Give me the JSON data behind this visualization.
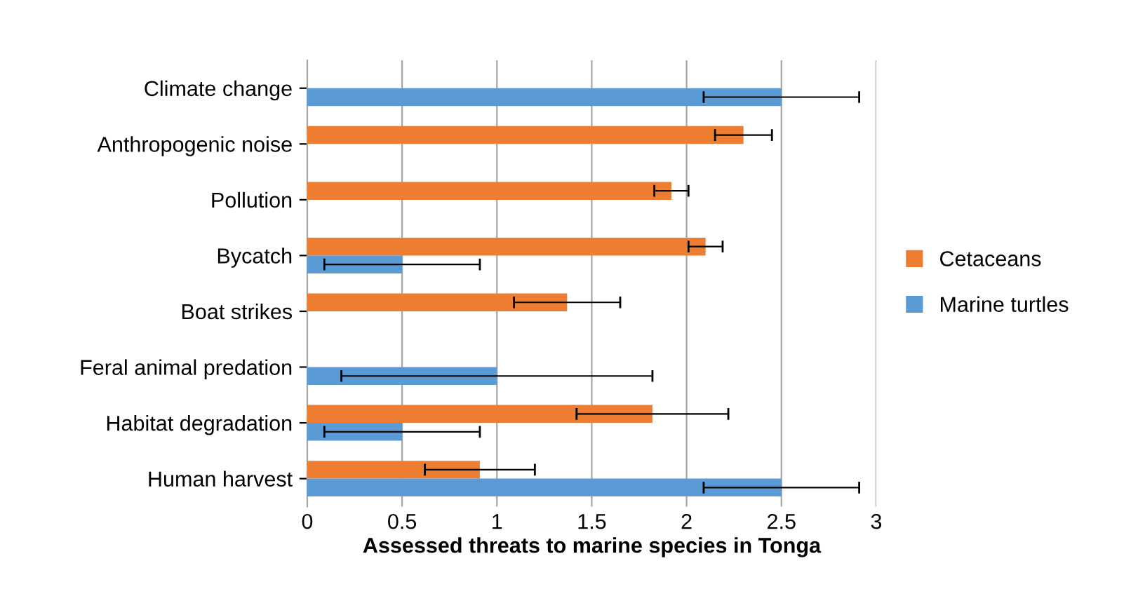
{
  "chart_data": {
    "type": "bar",
    "orientation": "horizontal",
    "xlabel": "Assessed threats to marine species in Tonga",
    "categories": [
      "Climate change",
      "Anthropogenic noise",
      "Pollution",
      "Bycatch",
      "Boat strikes",
      "Feral animal predation",
      "Habitat degradation",
      "Human harvest"
    ],
    "series": [
      {
        "name": "Cetaceans",
        "color": "#ed7d31",
        "values": [
          null,
          2.3,
          1.92,
          2.1,
          1.37,
          null,
          1.82,
          0.91
        ],
        "errors": [
          null,
          0.15,
          0.09,
          0.09,
          0.28,
          null,
          0.4,
          0.29
        ]
      },
      {
        "name": "Marine turtles",
        "color": "#5b9bd5",
        "values": [
          2.5,
          null,
          null,
          0.5,
          null,
          1.0,
          0.5,
          2.5
        ],
        "errors": [
          0.41,
          null,
          null,
          0.41,
          null,
          0.82,
          0.41,
          0.41
        ]
      }
    ],
    "xlim": [
      0,
      3
    ],
    "xticks": [
      0,
      0.5,
      1,
      1.5,
      2,
      2.5,
      3
    ],
    "grid": "x",
    "legend": "right"
  }
}
